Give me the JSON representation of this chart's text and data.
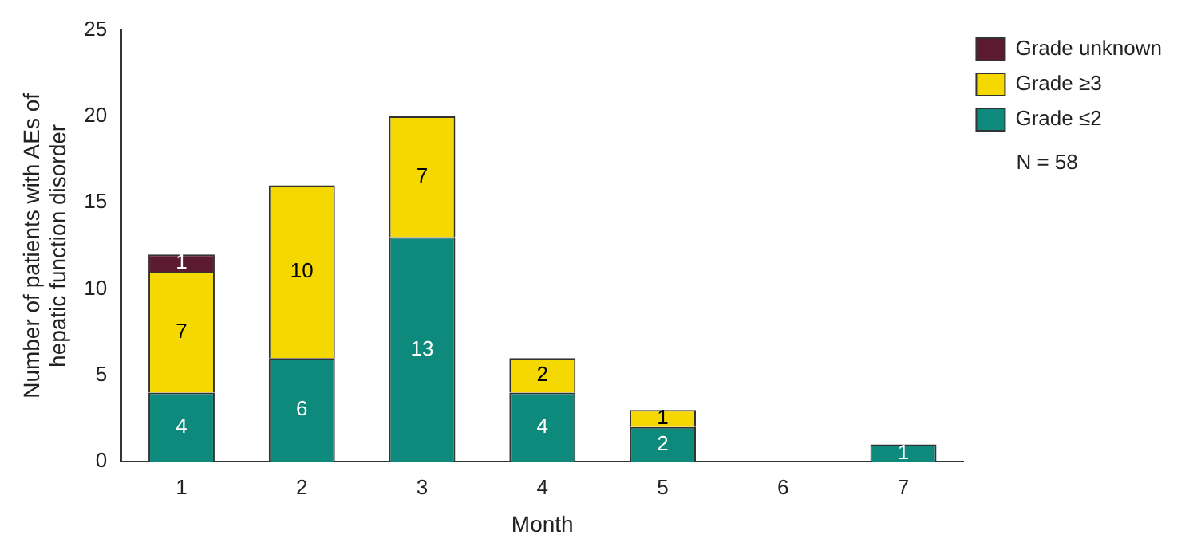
{
  "chart_data": {
    "type": "bar",
    "stacked": true,
    "xlabel": "Month",
    "ylabel": "Number of patients with AEs of hepatic function disorder",
    "categories": [
      "1",
      "2",
      "3",
      "4",
      "5",
      "6",
      "7"
    ],
    "series": [
      {
        "name": "Grade ≤2",
        "color": "#0e8a7c",
        "values": [
          4,
          6,
          13,
          4,
          2,
          null,
          1
        ]
      },
      {
        "name": "Grade ≥3",
        "color": "#f5d800",
        "values": [
          7,
          10,
          7,
          2,
          1,
          null,
          null
        ]
      },
      {
        "name": "Grade unknown",
        "color": "#5c1a30",
        "values": [
          1,
          null,
          null,
          null,
          null,
          null,
          null
        ]
      }
    ],
    "ylim": [
      0,
      25
    ],
    "yticks": [
      0,
      5,
      10,
      15,
      20,
      25
    ],
    "grid": false,
    "legend": "top right",
    "data_labels": true,
    "annotations": [
      "N = 58"
    ]
  }
}
